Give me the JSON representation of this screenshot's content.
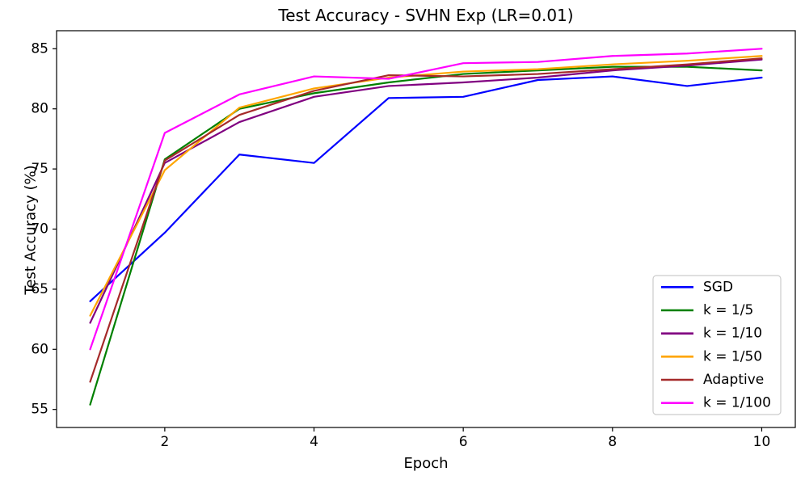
{
  "chart_data": {
    "type": "line",
    "title": "Test Accuracy - SVHN Exp (LR=0.01)",
    "xlabel": "Epoch",
    "ylabel": "Test Accuracy (%)",
    "x": [
      1,
      2,
      3,
      4,
      5,
      6,
      7,
      8,
      9,
      10
    ],
    "series": [
      {
        "name": "SGD",
        "color": "#0000FF",
        "values": [
          64.0,
          69.7,
          76.2,
          75.5,
          80.9,
          81.0,
          82.4,
          82.7,
          81.9,
          82.6
        ]
      },
      {
        "name": "k = 1/5",
        "color": "#008000",
        "values": [
          55.4,
          75.8,
          80.0,
          81.3,
          82.2,
          82.9,
          83.2,
          83.5,
          83.5,
          83.2
        ]
      },
      {
        "name": "k = 1/10",
        "color": "#800080",
        "values": [
          62.2,
          75.5,
          78.9,
          81.0,
          81.9,
          82.2,
          82.6,
          83.2,
          83.6,
          84.1
        ]
      },
      {
        "name": "k = 1/50",
        "color": "#FFA500",
        "values": [
          62.8,
          74.9,
          80.1,
          81.7,
          82.6,
          83.1,
          83.3,
          83.7,
          84.0,
          84.4
        ]
      },
      {
        "name": "Adaptive",
        "color": "#A52A2A",
        "values": [
          57.3,
          75.7,
          79.5,
          81.5,
          82.8,
          82.7,
          82.9,
          83.3,
          83.7,
          84.2
        ]
      },
      {
        "name": "k = 1/100",
        "color": "#FF00FF",
        "values": [
          60.0,
          78.0,
          81.2,
          82.7,
          82.5,
          83.8,
          83.9,
          84.4,
          84.6,
          85.0
        ]
      }
    ],
    "xticks": [
      2,
      4,
      6,
      8,
      10
    ],
    "yticks": [
      55,
      60,
      65,
      70,
      75,
      80,
      85
    ],
    "xlim": [
      0.55,
      10.45
    ],
    "ylim": [
      53.5,
      86.5
    ],
    "grid": false,
    "legend_position": "lower right",
    "axis_color": "#000000",
    "spine_color": "#000000",
    "legend_border_color": "#cccccc",
    "legend_background": "rgba(255,255,255,0.85)"
  }
}
